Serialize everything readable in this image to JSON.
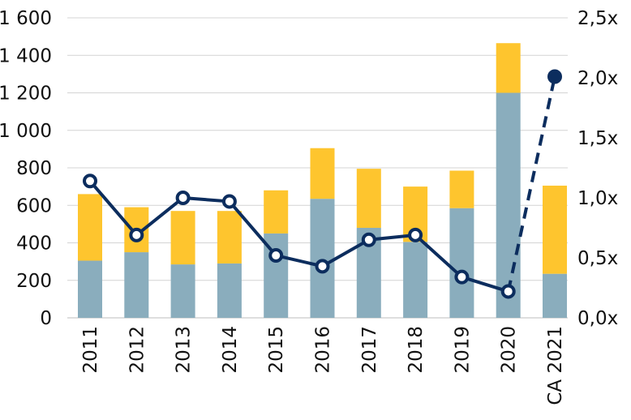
{
  "chart_data": {
    "type": "bar",
    "stacked": true,
    "categories": [
      "2011",
      "2012",
      "2013",
      "2014",
      "2015",
      "2016",
      "2017",
      "2018",
      "2019",
      "2020",
      "CA 2021"
    ],
    "series": [
      {
        "kind": "bar",
        "axis": "left",
        "color": "#8aadbd",
        "values": [
          305,
          350,
          285,
          290,
          450,
          635,
          480,
          405,
          585,
          1200,
          235
        ]
      },
      {
        "kind": "bar",
        "axis": "left",
        "color": "#fec52e",
        "values": [
          355,
          240,
          285,
          280,
          230,
          270,
          315,
          295,
          200,
          265,
          470
        ]
      },
      {
        "kind": "line",
        "axis": "right",
        "color": "#0c2d5e",
        "values": [
          1.14,
          0.69,
          1.0,
          0.97,
          0.52,
          0.43,
          0.65,
          0.69,
          0.34,
          0.22,
          2.01
        ],
        "dashed_last_segment": true,
        "last_point_filled": true
      }
    ],
    "y_left": {
      "ylim": [
        0,
        1600
      ],
      "ticks": [
        0,
        200,
        400,
        600,
        800,
        1000,
        1200,
        1400,
        1600
      ],
      "tick_labels": [
        "0",
        "200",
        "400",
        "600",
        "800",
        "1 000",
        "1 200",
        "1 400",
        "1 600"
      ]
    },
    "y_right": {
      "ylim": [
        0,
        2.5
      ],
      "ticks": [
        0,
        0.5,
        1.0,
        1.5,
        2.0,
        2.5
      ],
      "tick_labels": [
        "0,0x",
        "0,5x",
        "1,0x",
        "1,5x",
        "2,0x",
        "2,5x"
      ]
    },
    "grid": true,
    "legend": "none",
    "title": "",
    "xlabel": "",
    "ylabel": ""
  }
}
